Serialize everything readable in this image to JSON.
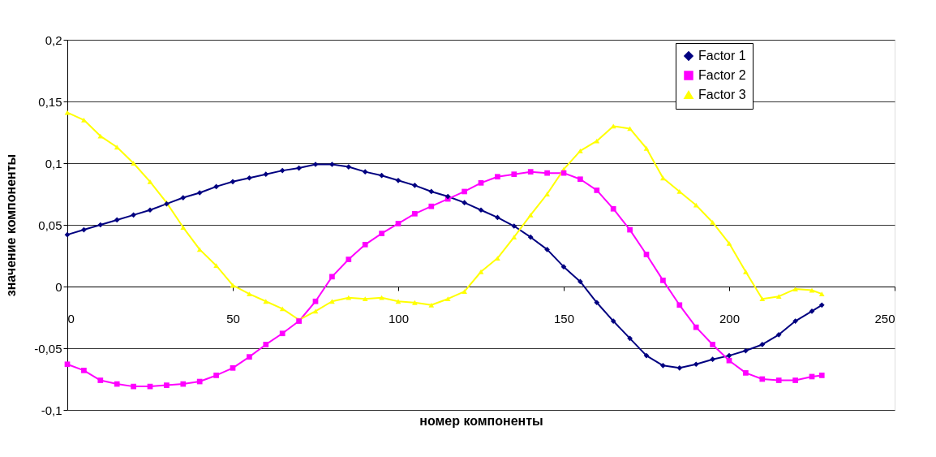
{
  "chart_data": {
    "type": "line",
    "xlabel": "номер компоненты",
    "ylabel": "значение компоненты",
    "x": [
      0,
      5,
      10,
      15,
      20,
      25,
      30,
      35,
      40,
      45,
      50,
      55,
      60,
      65,
      70,
      75,
      80,
      85,
      90,
      95,
      100,
      105,
      110,
      115,
      120,
      125,
      130,
      135,
      140,
      145,
      150,
      155,
      160,
      165,
      170,
      175,
      180,
      185,
      190,
      195,
      200,
      205,
      210,
      215,
      220,
      225,
      228
    ],
    "series": [
      {
        "name": "Factor 1",
        "color": "#000080",
        "marker": "diamond",
        "values": [
          0.042,
          0.046,
          0.05,
          0.054,
          0.058,
          0.062,
          0.067,
          0.072,
          0.076,
          0.081,
          0.085,
          0.088,
          0.091,
          0.094,
          0.096,
          0.099,
          0.099,
          0.097,
          0.093,
          0.09,
          0.086,
          0.082,
          0.077,
          0.073,
          0.068,
          0.062,
          0.056,
          0.049,
          0.04,
          0.03,
          0.016,
          0.004,
          -0.013,
          -0.028,
          -0.042,
          -0.056,
          -0.064,
          -0.066,
          -0.063,
          -0.059,
          -0.056,
          -0.052,
          -0.047,
          -0.039,
          -0.028,
          -0.02,
          -0.015
        ]
      },
      {
        "name": "Factor 2",
        "color": "#ff00ff",
        "marker": "square",
        "values": [
          -0.063,
          -0.068,
          -0.076,
          -0.079,
          -0.081,
          -0.081,
          -0.08,
          -0.079,
          -0.077,
          -0.072,
          -0.066,
          -0.057,
          -0.047,
          -0.038,
          -0.028,
          -0.012,
          0.008,
          0.022,
          0.034,
          0.043,
          0.051,
          0.059,
          0.065,
          0.071,
          0.077,
          0.084,
          0.089,
          0.091,
          0.093,
          0.092,
          0.092,
          0.087,
          0.078,
          0.063,
          0.046,
          0.026,
          0.005,
          -0.015,
          -0.033,
          -0.047,
          -0.06,
          -0.07,
          -0.075,
          -0.076,
          -0.076,
          -0.073,
          -0.072
        ]
      },
      {
        "name": "Factor 3",
        "color": "#ffff00",
        "marker": "triangle",
        "values": [
          0.141,
          0.135,
          0.122,
          0.113,
          0.1,
          0.085,
          0.068,
          0.048,
          0.03,
          0.017,
          0.001,
          -0.006,
          -0.012,
          -0.018,
          -0.027,
          -0.02,
          -0.012,
          -0.009,
          -0.01,
          -0.009,
          -0.012,
          -0.013,
          -0.015,
          -0.01,
          -0.004,
          0.012,
          0.023,
          0.04,
          0.058,
          0.075,
          0.095,
          0.11,
          0.118,
          0.13,
          0.128,
          0.112,
          0.088,
          0.077,
          0.066,
          0.052,
          0.035,
          0.012,
          -0.01,
          -0.008,
          -0.002,
          -0.003,
          -0.006
        ]
      }
    ],
    "xlim": [
      0,
      250
    ],
    "xticks": [
      0,
      50,
      100,
      150,
      200,
      250
    ],
    "ylim": [
      -0.1,
      0.2
    ],
    "yticks": [
      {
        "value": -0.1,
        "label": "-0,1"
      },
      {
        "value": -0.05,
        "label": "-0,05"
      },
      {
        "value": 0,
        "label": "0"
      },
      {
        "value": 0.05,
        "label": "0,05"
      },
      {
        "value": 0.1,
        "label": "0,1"
      },
      {
        "value": 0.15,
        "label": "0,15"
      },
      {
        "value": 0.2,
        "label": "0,2"
      }
    ],
    "grid": "y",
    "legend": "top right",
    "line_style": "solid"
  }
}
